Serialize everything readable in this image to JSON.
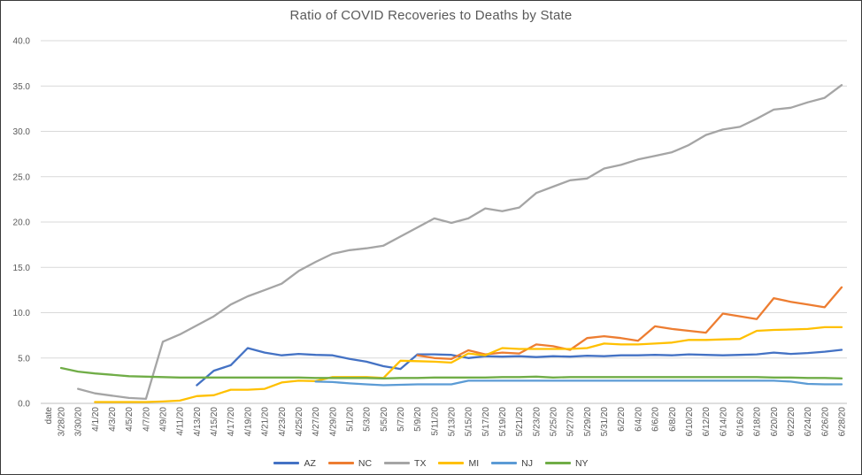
{
  "chart_data": {
    "type": "line",
    "title": "Ratio of COVID Recoveries to Deaths by State",
    "x_axis_label": "date",
    "ylim": [
      0,
      40
    ],
    "ytick_step": 5,
    "ytick_decimals": 1,
    "grid": true,
    "legend_position": "bottom",
    "categories": [
      "3/28/20",
      "3/30/20",
      "4/1/20",
      "4/3/20",
      "4/5/20",
      "4/7/20",
      "4/9/20",
      "4/11/20",
      "4/13/20",
      "4/15/20",
      "4/17/20",
      "4/19/20",
      "4/21/20",
      "4/23/20",
      "4/25/20",
      "4/27/20",
      "4/29/20",
      "5/1/20",
      "5/3/20",
      "5/5/20",
      "5/7/20",
      "5/9/20",
      "5/11/20",
      "5/13/20",
      "5/15/20",
      "5/17/20",
      "5/19/20",
      "5/21/20",
      "5/23/20",
      "5/25/20",
      "5/27/20",
      "5/29/20",
      "5/31/20",
      "6/2/20",
      "6/4/20",
      "6/6/20",
      "6/8/20",
      "6/10/20",
      "6/12/20",
      "6/14/20",
      "6/16/20",
      "6/18/20",
      "6/20/20",
      "6/22/20",
      "6/24/20",
      "6/26/20",
      "6/28/20"
    ],
    "series": [
      {
        "name": "AZ",
        "color": "#4472C4",
        "values": [
          null,
          null,
          null,
          null,
          null,
          null,
          null,
          null,
          2.0,
          3.6,
          4.2,
          6.1,
          5.6,
          5.3,
          5.45,
          5.35,
          5.3,
          4.9,
          4.6,
          4.1,
          3.8,
          5.4,
          5.4,
          5.35,
          5.0,
          5.2,
          5.15,
          5.2,
          5.1,
          5.2,
          5.15,
          5.25,
          5.2,
          5.3,
          5.3,
          5.35,
          5.3,
          5.4,
          5.35,
          5.3,
          5.35,
          5.4,
          5.6,
          5.45,
          5.55,
          5.7,
          5.9
        ]
      },
      {
        "name": "NC",
        "color": "#ED7D31",
        "values": [
          null,
          null,
          null,
          null,
          null,
          null,
          null,
          null,
          null,
          null,
          null,
          null,
          null,
          null,
          null,
          null,
          null,
          null,
          null,
          null,
          null,
          5.3,
          5.0,
          4.9,
          5.85,
          5.4,
          5.6,
          5.5,
          6.5,
          6.3,
          5.9,
          7.2,
          7.4,
          7.2,
          6.9,
          8.5,
          8.2,
          8.0,
          7.8,
          9.9,
          9.6,
          9.3,
          11.6,
          11.2,
          10.9,
          10.6,
          12.8
        ]
      },
      {
        "name": "TX",
        "color": "#A5A5A5",
        "values": [
          null,
          1.6,
          1.1,
          0.85,
          0.6,
          0.5,
          6.8,
          7.6,
          8.6,
          9.6,
          10.9,
          11.8,
          12.5,
          13.2,
          14.6,
          15.6,
          16.5,
          16.9,
          17.1,
          17.4,
          18.4,
          19.4,
          20.4,
          19.9,
          20.4,
          21.5,
          21.2,
          21.6,
          23.2,
          23.9,
          24.6,
          24.8,
          25.9,
          26.3,
          26.9,
          27.3,
          27.7,
          28.5,
          29.6,
          30.2,
          30.5,
          31.4,
          32.4,
          32.6,
          33.2,
          33.7,
          35.1
        ]
      },
      {
        "name": "MI",
        "color": "#FFC000",
        "values": [
          null,
          null,
          0.15,
          0.15,
          0.15,
          0.15,
          0.2,
          0.3,
          0.8,
          0.9,
          1.5,
          1.5,
          1.6,
          2.3,
          2.5,
          2.45,
          2.9,
          2.9,
          2.9,
          2.8,
          4.7,
          4.65,
          4.6,
          4.5,
          5.5,
          5.3,
          6.1,
          6.0,
          6.0,
          6.0,
          6.0,
          6.1,
          6.6,
          6.5,
          6.5,
          6.6,
          6.7,
          7.0,
          7.0,
          7.05,
          7.1,
          8.0,
          8.1,
          8.15,
          8.2,
          8.4,
          8.4
        ]
      },
      {
        "name": "NJ",
        "color": "#5B9BD5",
        "values": [
          null,
          null,
          null,
          null,
          null,
          null,
          null,
          null,
          null,
          null,
          null,
          null,
          null,
          null,
          null,
          2.4,
          2.35,
          2.2,
          2.1,
          2.0,
          2.05,
          2.1,
          2.1,
          2.1,
          2.5,
          2.5,
          2.5,
          2.5,
          2.5,
          2.5,
          2.5,
          2.5,
          2.5,
          2.5,
          2.5,
          2.5,
          2.5,
          2.5,
          2.5,
          2.5,
          2.5,
          2.5,
          2.5,
          2.4,
          2.15,
          2.1,
          2.1
        ]
      },
      {
        "name": "NY",
        "color": "#70AD47",
        "values": [
          3.9,
          3.5,
          3.3,
          3.15,
          3.0,
          2.95,
          2.9,
          2.85,
          2.85,
          2.85,
          2.85,
          2.85,
          2.85,
          2.85,
          2.85,
          2.8,
          2.8,
          2.8,
          2.8,
          2.75,
          2.8,
          2.8,
          2.85,
          2.85,
          2.85,
          2.85,
          2.9,
          2.9,
          2.95,
          2.85,
          2.9,
          2.9,
          2.9,
          2.9,
          2.9,
          2.9,
          2.9,
          2.9,
          2.9,
          2.9,
          2.9,
          2.9,
          2.85,
          2.85,
          2.8,
          2.8,
          2.75
        ]
      }
    ]
  },
  "style": {
    "text_color": "#595959",
    "gridline_color": "#D9D9D9",
    "axis_line_color": "#BFBFBF"
  }
}
